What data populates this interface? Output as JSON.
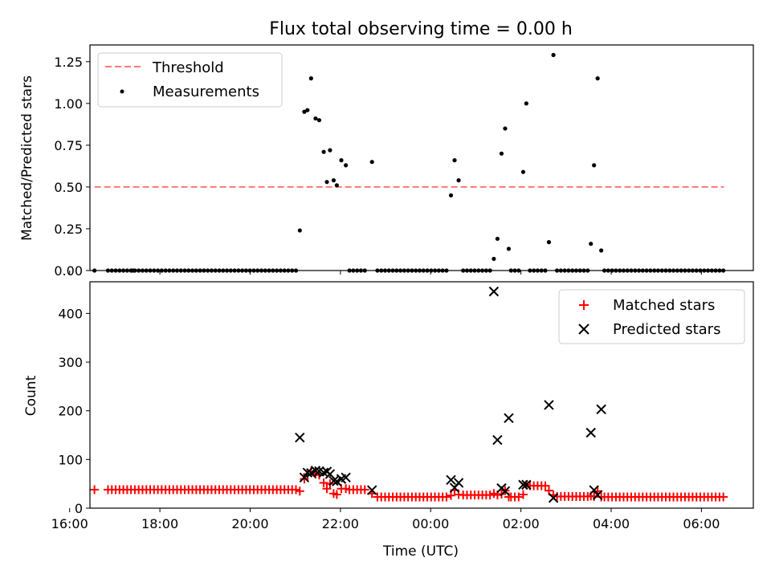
{
  "title": "Flux total observing time = 0.00 h",
  "chart_data": [
    {
      "type": "scatter",
      "ylabel": "Matched/Predicted stars",
      "xlim": [
        16.45,
        31.15
      ],
      "ylim": [
        0.0,
        1.35
      ],
      "yticks": [
        "0.00",
        "0.25",
        "0.50",
        "0.75",
        "1.00",
        "1.25"
      ],
      "x_tick_positions": [
        16,
        18,
        20,
        22,
        24,
        26,
        28,
        30
      ],
      "grid": false,
      "legend_position": "top-left",
      "threshold": {
        "name": "Threshold",
        "value": 0.5,
        "x_range": [
          16.55,
          30.5
        ],
        "color": "#ff7777"
      },
      "measurements": {
        "name": "Measurements",
        "color": "#000000",
        "points": [
          [
            16.55,
            0.0
          ],
          [
            17.4,
            0.0
          ],
          [
            21.1,
            0.24
          ],
          [
            21.2,
            0.95
          ],
          [
            21.27,
            0.96
          ],
          [
            21.35,
            1.15
          ],
          [
            21.45,
            0.91
          ],
          [
            21.53,
            0.9
          ],
          [
            21.63,
            0.71
          ],
          [
            21.7,
            0.53
          ],
          [
            21.77,
            0.72
          ],
          [
            21.85,
            0.54
          ],
          [
            21.92,
            0.51
          ],
          [
            22.02,
            0.66
          ],
          [
            22.12,
            0.63
          ],
          [
            22.7,
            0.65
          ],
          [
            24.45,
            0.45
          ],
          [
            24.53,
            0.66
          ],
          [
            24.62,
            0.54
          ],
          [
            25.4,
            0.07
          ],
          [
            25.48,
            0.19
          ],
          [
            25.57,
            0.7
          ],
          [
            25.65,
            0.85
          ],
          [
            25.73,
            0.13
          ],
          [
            26.05,
            0.59
          ],
          [
            26.12,
            1.0
          ],
          [
            26.62,
            0.17
          ],
          [
            26.72,
            1.29
          ],
          [
            27.55,
            0.16
          ],
          [
            27.62,
            0.63
          ],
          [
            27.7,
            1.15
          ],
          [
            27.78,
            0.12
          ]
        ],
        "zero_ranges": [
          [
            16.85,
            21.05
          ],
          [
            22.2,
            22.62
          ],
          [
            22.82,
            24.35
          ],
          [
            24.72,
            25.32
          ],
          [
            25.78,
            26.0
          ],
          [
            26.2,
            26.55
          ],
          [
            26.8,
            27.5
          ],
          [
            27.85,
            30.5
          ]
        ]
      }
    },
    {
      "type": "scatter",
      "xlabel": "Time (UTC)",
      "ylabel": "Count",
      "xlim": [
        16.45,
        31.15
      ],
      "ylim": [
        0,
        465
      ],
      "yticks": [
        "0",
        "100",
        "200",
        "300",
        "400"
      ],
      "xticks": [
        "16:00",
        "18:00",
        "20:00",
        "22:00",
        "00:00",
        "02:00",
        "04:00",
        "06:00"
      ],
      "x_tick_positions": [
        16,
        18,
        20,
        22,
        24,
        26,
        28,
        30
      ],
      "grid": false,
      "legend_position": "top-right",
      "matched": {
        "name": "Matched stars",
        "color": "#ff0000",
        "segments": [
          {
            "x0": 16.55,
            "x1": 16.55,
            "y": 38
          },
          {
            "x0": 16.85,
            "x1": 21.05,
            "y": 38
          },
          {
            "x0": 22.2,
            "x1": 22.62,
            "y": 38
          },
          {
            "x0": 22.82,
            "x1": 24.35,
            "y": 23
          },
          {
            "x0": 24.72,
            "x1": 25.32,
            "y": 27
          },
          {
            "x0": 25.78,
            "x1": 26.0,
            "y": 23
          },
          {
            "x0": 26.2,
            "x1": 26.55,
            "y": 46
          },
          {
            "x0": 26.8,
            "x1": 27.5,
            "y": 24
          },
          {
            "x0": 27.85,
            "x1": 30.5,
            "y": 23
          }
        ],
        "points": [
          [
            21.1,
            35
          ],
          [
            21.2,
            60
          ],
          [
            21.27,
            70
          ],
          [
            21.35,
            75
          ],
          [
            21.45,
            70
          ],
          [
            21.53,
            68
          ],
          [
            21.63,
            52
          ],
          [
            21.7,
            40
          ],
          [
            21.77,
            50
          ],
          [
            21.85,
            30
          ],
          [
            21.92,
            28
          ],
          [
            22.02,
            40
          ],
          [
            22.12,
            40
          ],
          [
            22.7,
            30
          ],
          [
            24.45,
            26
          ],
          [
            24.53,
            37
          ],
          [
            24.62,
            28
          ],
          [
            25.4,
            30
          ],
          [
            25.48,
            27
          ],
          [
            25.57,
            29
          ],
          [
            25.65,
            36
          ],
          [
            25.73,
            23
          ],
          [
            26.05,
            28
          ],
          [
            26.12,
            48
          ],
          [
            26.62,
            36
          ],
          [
            26.72,
            27
          ],
          [
            27.55,
            25
          ],
          [
            27.62,
            24
          ],
          [
            27.7,
            35
          ],
          [
            27.78,
            23
          ]
        ]
      },
      "predicted": {
        "name": "Predicted stars",
        "color": "#000000",
        "points": [
          [
            21.1,
            145
          ],
          [
            21.2,
            63
          ],
          [
            21.27,
            73
          ],
          [
            21.35,
            72
          ],
          [
            21.45,
            77
          ],
          [
            21.53,
            76
          ],
          [
            21.63,
            73
          ],
          [
            21.7,
            75
          ],
          [
            21.77,
            70
          ],
          [
            21.85,
            56
          ],
          [
            21.92,
            55
          ],
          [
            22.02,
            60
          ],
          [
            22.12,
            63
          ],
          [
            22.7,
            37
          ],
          [
            24.45,
            58
          ],
          [
            24.53,
            42
          ],
          [
            24.62,
            52
          ],
          [
            25.4,
            445
          ],
          [
            25.48,
            140
          ],
          [
            25.57,
            41
          ],
          [
            25.65,
            35
          ],
          [
            25.73,
            185
          ],
          [
            26.05,
            48
          ],
          [
            26.12,
            48
          ],
          [
            26.62,
            212
          ],
          [
            26.72,
            21
          ],
          [
            27.55,
            155
          ],
          [
            27.62,
            37
          ],
          [
            27.7,
            27
          ],
          [
            27.78,
            203
          ]
        ]
      }
    }
  ]
}
